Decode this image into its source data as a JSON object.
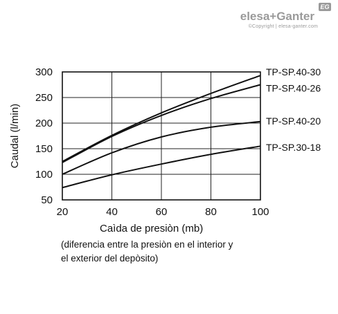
{
  "logo": {
    "brand": "elesa+Ganter",
    "badge": "EG",
    "copyright": "©Copyright | elesa-ganter.com"
  },
  "chart_data": {
    "type": "line",
    "xlabel": "Caìda de presiòn (mb)",
    "ylabel": "Caudal (l/min)",
    "note_lines": [
      "(diferencia entre la presiòn en el interior y",
      "el exterior del depòsito)"
    ],
    "xlim": [
      20,
      100
    ],
    "ylim": [
      50,
      300
    ],
    "x_ticks": [
      20,
      40,
      60,
      80,
      100
    ],
    "y_ticks": [
      50,
      100,
      150,
      200,
      250,
      300
    ],
    "grid": true,
    "series": [
      {
        "name": "TP-SP.40-30",
        "x": [
          20,
          40,
          60,
          80,
          100
        ],
        "y": [
          125,
          176,
          220,
          258,
          293
        ]
      },
      {
        "name": "TP-SP.40-26",
        "x": [
          20,
          40,
          60,
          80,
          100
        ],
        "y": [
          123,
          174,
          215,
          248,
          275
        ]
      },
      {
        "name": "TP-SP.40-20",
        "x": [
          20,
          40,
          60,
          80,
          100
        ],
        "y": [
          100,
          142,
          173,
          192,
          203
        ]
      },
      {
        "name": "TP-SP.30-18",
        "x": [
          20,
          40,
          60,
          80,
          100
        ],
        "y": [
          74,
          99,
          120,
          139,
          155
        ]
      }
    ],
    "label_y": [
      300,
      268,
      204,
      153
    ]
  }
}
